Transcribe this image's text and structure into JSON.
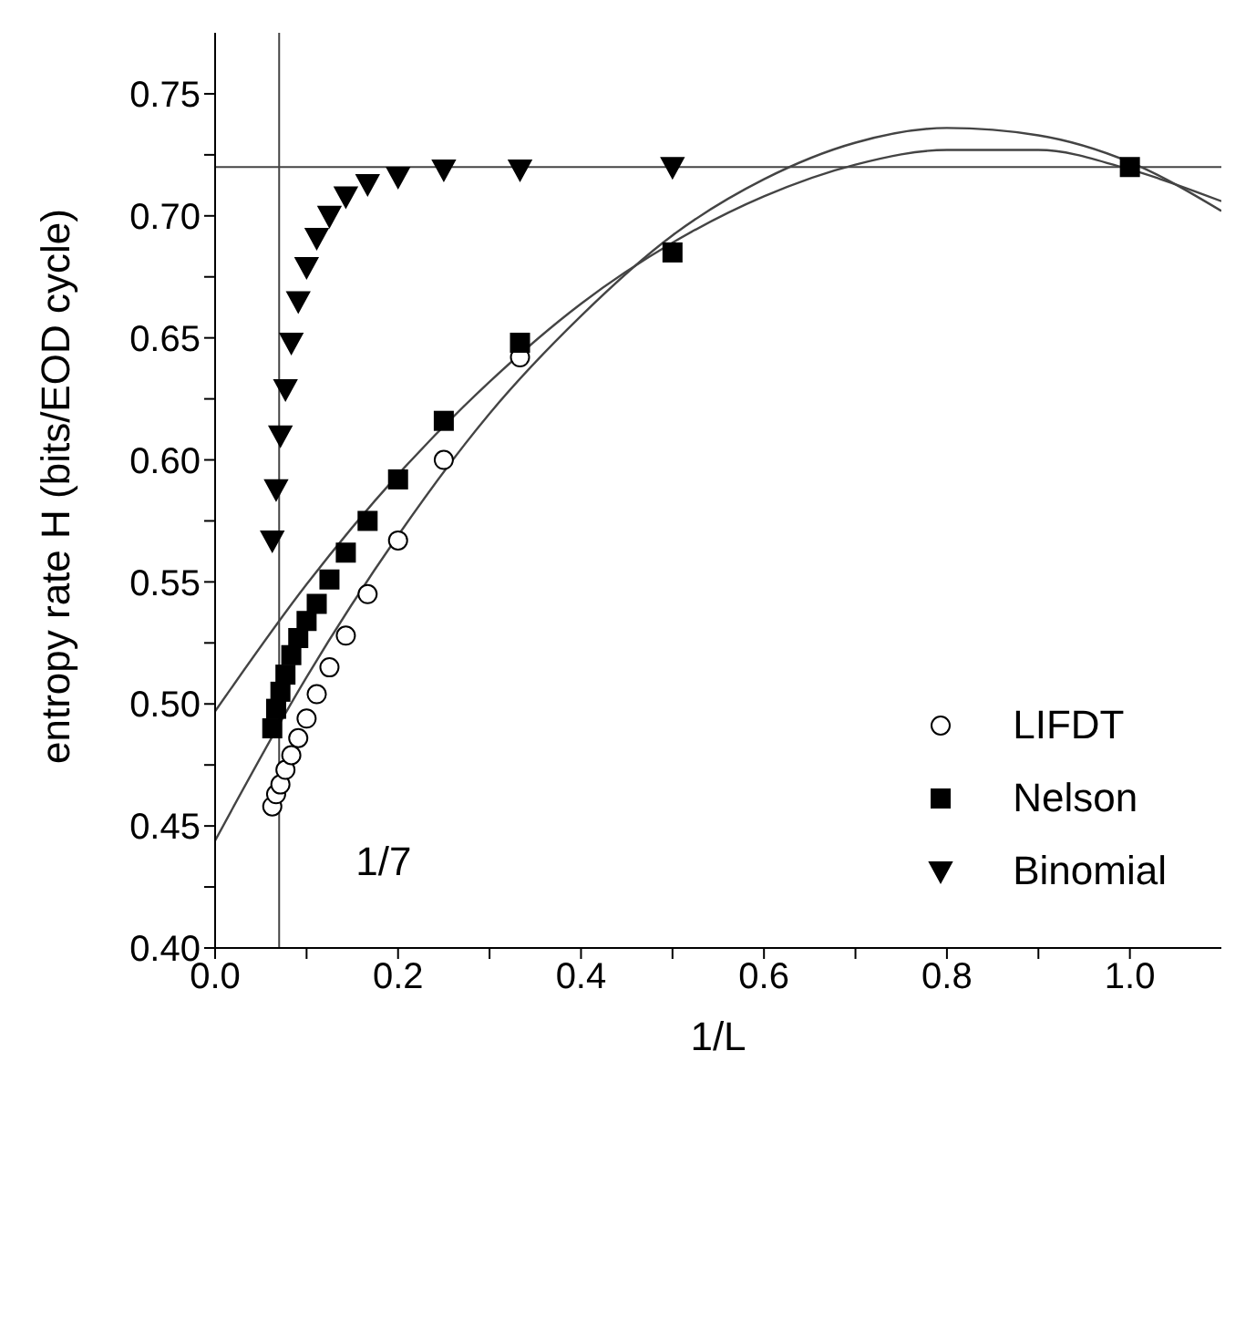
{
  "chart_data": {
    "type": "scatter",
    "xlabel": "1/L",
    "ylabel": "entropy rate H (bits/EOD cycle)",
    "xlim": [
      0,
      1.1
    ],
    "ylim": [
      0.4,
      0.775
    ],
    "xticks": [
      {
        "value": 0,
        "label": "0.0"
      },
      {
        "value": 0.1,
        "label": null
      },
      {
        "value": 0.2,
        "label": "0.2"
      },
      {
        "value": 0.3,
        "label": null
      },
      {
        "value": 0.4,
        "label": "0.4"
      },
      {
        "value": 0.5,
        "label": null
      },
      {
        "value": 0.6,
        "label": "0.6"
      },
      {
        "value": 0.7,
        "label": null
      },
      {
        "value": 0.8,
        "label": "0.8"
      },
      {
        "value": 0.9,
        "label": null
      },
      {
        "value": 1,
        "label": "1.0"
      }
    ],
    "yticks": [
      {
        "value": 0.4,
        "label": "0.40"
      },
      {
        "value": 0.425,
        "label": null
      },
      {
        "value": 0.45,
        "label": "0.45"
      },
      {
        "value": 0.475,
        "label": null
      },
      {
        "value": 0.5,
        "label": "0.50"
      },
      {
        "value": 0.525,
        "label": null
      },
      {
        "value": 0.55,
        "label": "0.55"
      },
      {
        "value": 0.575,
        "label": null
      },
      {
        "value": 0.6,
        "label": "0.60"
      },
      {
        "value": 0.625,
        "label": null
      },
      {
        "value": 0.65,
        "label": "0.65"
      },
      {
        "value": 0.675,
        "label": null
      },
      {
        "value": 0.7,
        "label": "0.70"
      },
      {
        "value": 0.725,
        "label": null
      },
      {
        "value": 0.75,
        "label": "0.75"
      }
    ],
    "grid": false,
    "legend": "bottom right",
    "series": [
      {
        "type": "line",
        "color": "#444444",
        "marker": "none",
        "line_style": "solid",
        "x": [
          0,
          0.1,
          0.2,
          0.3,
          0.4,
          0.5,
          0.6,
          0.7,
          0.8,
          0.9,
          1.0,
          1.1
        ],
        "values": [
          0.444,
          0.511,
          0.569,
          0.619,
          0.659,
          0.692,
          0.715,
          0.73,
          0.736,
          0.733,
          0.722,
          0.702
        ]
      },
      {
        "type": "line",
        "color": "#444444",
        "marker": "none",
        "line_style": "solid",
        "x": [
          0,
          0.1,
          0.2,
          0.3,
          0.4,
          0.5,
          0.6,
          0.7,
          0.8,
          0.9,
          1.0,
          1.1
        ],
        "values": [
          0.497,
          0.549,
          0.594,
          0.632,
          0.664,
          0.689,
          0.708,
          0.721,
          0.727,
          0.727,
          0.719,
          0.706
        ]
      },
      {
        "name": "LIFDT",
        "marker": "circle",
        "color": "#000000",
        "x": [
          0.0625,
          0.0667,
          0.0714,
          0.0769,
          0.0833,
          0.0909,
          0.1,
          0.1111,
          0.125,
          0.1429,
          0.1667,
          0.2,
          0.25,
          0.3333
        ],
        "values": [
          0.458,
          0.463,
          0.467,
          0.473,
          0.479,
          0.486,
          0.494,
          0.504,
          0.515,
          0.528,
          0.545,
          0.567,
          0.6,
          0.642
        ]
      },
      {
        "name": "Nelson",
        "marker": "square",
        "color": "#000000",
        "x": [
          0.0625,
          0.0667,
          0.0714,
          0.0769,
          0.0833,
          0.0909,
          0.1,
          0.1111,
          0.125,
          0.1429,
          0.1667,
          0.2,
          0.25,
          0.3333,
          0.5,
          1.0
        ],
        "values": [
          0.49,
          0.498,
          0.505,
          0.512,
          0.52,
          0.527,
          0.534,
          0.541,
          0.551,
          0.562,
          0.575,
          0.592,
          0.616,
          0.648,
          0.685,
          0.72
        ]
      },
      {
        "name": "Binomial",
        "marker": "triangle",
        "color": "#000000",
        "x": [
          0.0625,
          0.0667,
          0.0714,
          0.0769,
          0.0833,
          0.0909,
          0.1,
          0.1111,
          0.125,
          0.1429,
          0.1667,
          0.2,
          0.25,
          0.3333,
          0.5
        ],
        "values": [
          0.567,
          0.588,
          0.61,
          0.629,
          0.648,
          0.665,
          0.679,
          0.691,
          0.7,
          0.708,
          0.713,
          0.716,
          0.719,
          0.719,
          0.72
        ]
      }
    ],
    "ref_lines": [
      {
        "axis": "y",
        "value": 0.72,
        "color": "#444444"
      },
      {
        "axis": "x",
        "value": 0.07,
        "label": "1/7",
        "color": "#444444"
      }
    ]
  }
}
